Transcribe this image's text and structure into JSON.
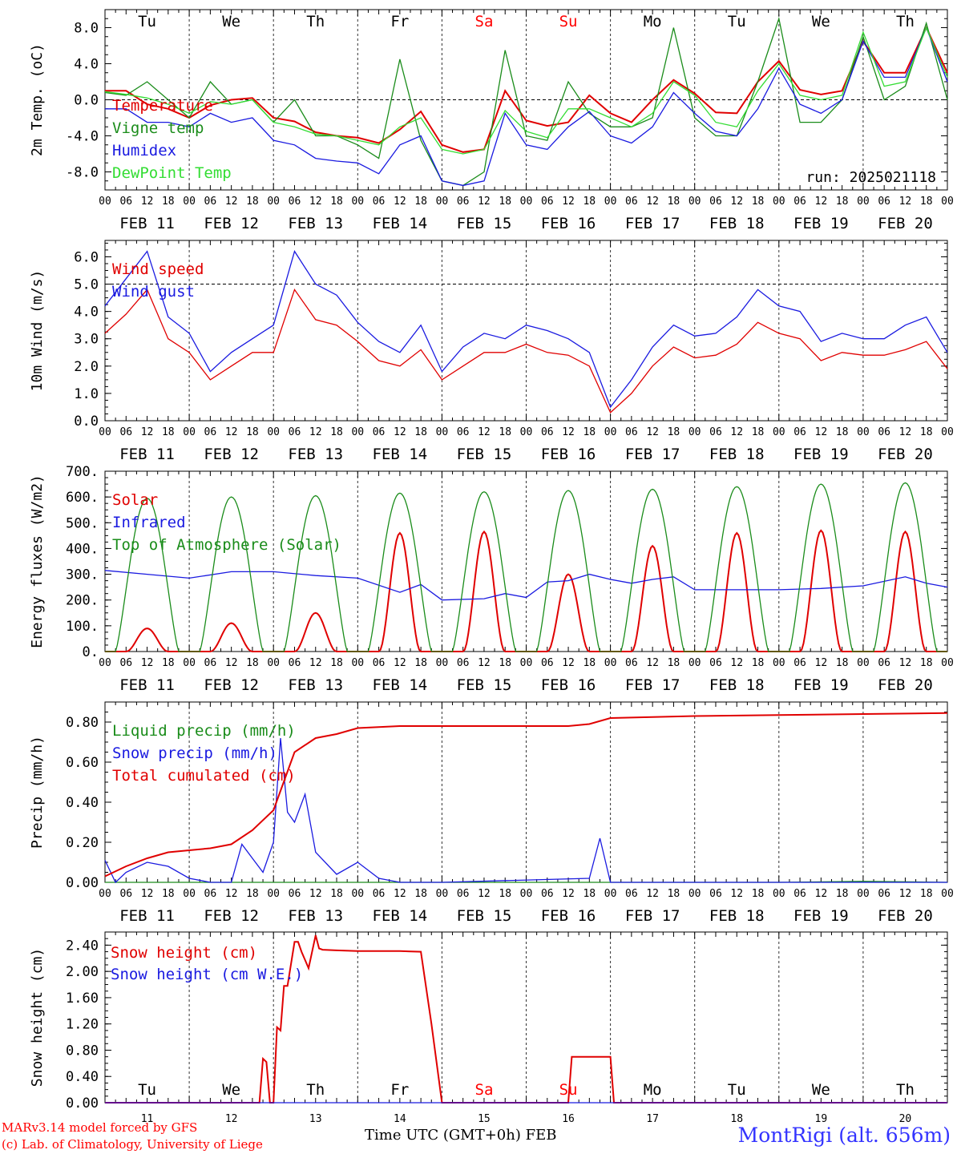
{
  "x_axis": {
    "hour_ticks": [
      "00",
      "06",
      "12",
      "18"
    ],
    "dates": [
      "FEB 11",
      "FEB 12",
      "FEB 13",
      "FEB 14",
      "FEB 15",
      "FEB 16",
      "FEB 17",
      "FEB 18",
      "FEB 19",
      "FEB 20"
    ],
    "end_tick": "00",
    "day_numbers": [
      "11",
      "12",
      "13",
      "14",
      "15",
      "16",
      "17",
      "18",
      "19",
      "20"
    ],
    "weekdays": [
      "Tu",
      "We",
      "Th",
      "Fr",
      "Sa",
      "Su",
      "Mo",
      "Tu",
      "We",
      "Th"
    ],
    "weekend_color": "#ff0000"
  },
  "footer": {
    "model": "MARv3.14 model forced by GFS",
    "copyright": "(c) Lab. of Climatology, University of Liege",
    "time_label": "Time UTC (GMT+0h) FEB",
    "station": "MontRigi (alt. 656m)"
  },
  "chart_data": [
    {
      "type": "line",
      "ylabel": "2m Temp. (oC)",
      "ylim": [
        -10,
        10
      ],
      "yticks": [
        "-8.0",
        "-4.0",
        "0.0",
        "4.0",
        "8.0"
      ],
      "annotation": "run: 2025021118",
      "x_unit": "hours since FEB 11 00 UTC",
      "series": [
        {
          "name": "Temperature",
          "color": "#e00000",
          "x": [
            0,
            6,
            12,
            18,
            24,
            30,
            36,
            42,
            48,
            54,
            60,
            66,
            72,
            78,
            84,
            90,
            96,
            102,
            108,
            114,
            120,
            126,
            132,
            138,
            144,
            150,
            156,
            162,
            168,
            174,
            180,
            186,
            192,
            198,
            204,
            210,
            216,
            222,
            228,
            234,
            240
          ],
          "values": [
            1.0,
            1.0,
            -0.5,
            -1.0,
            -2.0,
            -0.6,
            0.0,
            0.2,
            -2.0,
            -2.4,
            -3.6,
            -4.0,
            -4.2,
            -4.8,
            -3.3,
            -1.3,
            -5.0,
            -5.8,
            -5.5,
            1.0,
            -2.3,
            -2.9,
            -2.5,
            0.5,
            -1.5,
            -2.5,
            0.0,
            2.2,
            0.7,
            -1.4,
            -1.5,
            2.0,
            4.3,
            1.1,
            0.6,
            1.0,
            6.5,
            3.0,
            3.0,
            8.0,
            3.0
          ]
        },
        {
          "name": "Vigne temp",
          "color": "#1a8c1a",
          "x": [
            0,
            6,
            12,
            18,
            24,
            30,
            36,
            42,
            48,
            54,
            60,
            66,
            72,
            78,
            84,
            90,
            96,
            102,
            108,
            114,
            120,
            126,
            132,
            138,
            144,
            150,
            156,
            162,
            168,
            174,
            180,
            186,
            192,
            198,
            204,
            210,
            216,
            222,
            228,
            234,
            240
          ],
          "values": [
            0.8,
            0.5,
            2.0,
            0.0,
            -2.0,
            2.0,
            -0.5,
            0.0,
            -2.5,
            0.0,
            -4.0,
            -4.0,
            -5.0,
            -6.5,
            4.5,
            -4.5,
            -9.0,
            -9.5,
            -8.0,
            5.5,
            -4.0,
            -4.5,
            2.0,
            -1.5,
            -3.0,
            -3.0,
            -2.0,
            8.0,
            -2.0,
            -4.0,
            -4.0,
            2.0,
            9.0,
            -2.5,
            -2.5,
            0.0,
            7.0,
            0.0,
            1.5,
            8.5,
            0.0
          ]
        },
        {
          "name": "Humidex",
          "color": "#1a1ae0",
          "x": [
            0,
            6,
            12,
            18,
            24,
            30,
            36,
            42,
            48,
            54,
            60,
            66,
            72,
            78,
            84,
            90,
            96,
            102,
            108,
            114,
            120,
            126,
            132,
            138,
            144,
            150,
            156,
            162,
            168,
            174,
            180,
            186,
            192,
            198,
            204,
            210,
            216,
            222,
            228,
            234,
            240
          ],
          "values": [
            -1.0,
            -1.0,
            -2.5,
            -2.5,
            -3.0,
            -1.5,
            -2.5,
            -2.0,
            -4.5,
            -5.0,
            -6.5,
            -6.8,
            -7.0,
            -8.2,
            -5.0,
            -4.0,
            -9.0,
            -9.5,
            -9.0,
            -1.5,
            -5.0,
            -5.5,
            -3.0,
            -1.3,
            -4.0,
            -4.8,
            -3.0,
            0.8,
            -1.5,
            -3.5,
            -4.0,
            -1.0,
            3.5,
            -0.5,
            -1.5,
            0.0,
            6.5,
            2.5,
            2.5,
            8.0,
            2.0
          ]
        },
        {
          "name": "DewPoint Temp",
          "color": "#33dd33",
          "x": [
            0,
            6,
            12,
            18,
            24,
            30,
            36,
            42,
            48,
            54,
            60,
            66,
            72,
            78,
            84,
            90,
            96,
            102,
            108,
            114,
            120,
            126,
            132,
            138,
            144,
            150,
            156,
            162,
            168,
            174,
            180,
            186,
            192,
            198,
            204,
            210,
            216,
            222,
            228,
            234,
            240
          ],
          "values": [
            0.9,
            0.6,
            0.2,
            -0.5,
            -1.5,
            -0.2,
            -0.5,
            0.0,
            -2.5,
            -3.0,
            -3.8,
            -4.0,
            -4.5,
            -5.0,
            -3.0,
            -2.0,
            -5.5,
            -6.0,
            -5.5,
            -1.2,
            -3.5,
            -4.2,
            -1.0,
            -1.0,
            -2.0,
            -3.0,
            -1.5,
            2.0,
            0.5,
            -2.5,
            -3.0,
            1.0,
            4.0,
            0.5,
            0.0,
            0.5,
            7.5,
            1.5,
            2.0,
            8.0,
            2.5
          ]
        }
      ]
    },
    {
      "type": "line",
      "ylabel": "10m Wind (m/s)",
      "ylim": [
        0,
        6.6
      ],
      "yticks": [
        "0.0",
        "1.0",
        "2.0",
        "3.0",
        "4.0",
        "5.0",
        "6.0"
      ],
      "x_unit": "hours since FEB 11 00 UTC",
      "series": [
        {
          "name": "Wind speed",
          "color": "#e00000",
          "x": [
            0,
            6,
            12,
            18,
            24,
            30,
            36,
            42,
            48,
            54,
            60,
            66,
            72,
            78,
            84,
            90,
            96,
            102,
            108,
            114,
            120,
            126,
            132,
            138,
            144,
            150,
            156,
            162,
            168,
            174,
            180,
            186,
            192,
            198,
            204,
            210,
            216,
            222,
            228,
            234,
            240
          ],
          "values": [
            3.2,
            3.9,
            4.8,
            3.0,
            2.5,
            1.5,
            2.0,
            2.5,
            2.5,
            4.8,
            3.7,
            3.5,
            2.9,
            2.2,
            2.0,
            2.6,
            1.5,
            2.0,
            2.5,
            2.5,
            2.8,
            2.5,
            2.4,
            2.0,
            0.3,
            1.0,
            2.0,
            2.7,
            2.3,
            2.4,
            2.8,
            3.6,
            3.2,
            3.0,
            2.2,
            2.5,
            2.4,
            2.4,
            2.6,
            2.9,
            1.9
          ]
        },
        {
          "name": "Wind gust",
          "color": "#1a1ae0",
          "x": [
            0,
            6,
            12,
            18,
            24,
            30,
            36,
            42,
            48,
            54,
            60,
            66,
            72,
            78,
            84,
            90,
            96,
            102,
            108,
            114,
            120,
            126,
            132,
            138,
            144,
            150,
            156,
            162,
            168,
            174,
            180,
            186,
            192,
            198,
            204,
            210,
            216,
            222,
            228,
            234,
            240
          ],
          "values": [
            4.2,
            5.2,
            6.2,
            3.8,
            3.2,
            1.8,
            2.5,
            3.0,
            3.5,
            6.2,
            5.0,
            4.6,
            3.6,
            2.9,
            2.5,
            3.5,
            1.8,
            2.7,
            3.2,
            3.0,
            3.5,
            3.3,
            3.0,
            2.5,
            0.5,
            1.5,
            2.7,
            3.5,
            3.1,
            3.2,
            3.8,
            4.8,
            4.2,
            4.0,
            2.9,
            3.2,
            3.0,
            3.0,
            3.5,
            3.8,
            2.5
          ]
        }
      ]
    },
    {
      "type": "line",
      "ylabel": "Energy fluxes (W/m2)",
      "ylim": [
        0,
        700
      ],
      "yticks": [
        "0.",
        "100.",
        "200.",
        "300.",
        "400.",
        "500.",
        "600.",
        "700."
      ],
      "x_unit": "hours since FEB 11 00 UTC",
      "daily_peak_hour": 12,
      "series": [
        {
          "name": "Solar",
          "color": "#e00000",
          "daily_peaks": [
            90,
            110,
            150,
            460,
            465,
            300,
            410,
            460,
            470,
            465
          ]
        },
        {
          "name": "Infrared",
          "color": "#1a1ae0",
          "x": [
            0,
            12,
            24,
            36,
            48,
            60,
            72,
            84,
            90,
            96,
            108,
            114,
            120,
            126,
            132,
            138,
            144,
            150,
            156,
            162,
            168,
            180,
            192,
            204,
            216,
            228,
            234,
            240
          ],
          "values": [
            315,
            300,
            285,
            310,
            310,
            295,
            285,
            230,
            260,
            200,
            205,
            225,
            210,
            270,
            275,
            300,
            280,
            265,
            280,
            290,
            240,
            240,
            240,
            245,
            255,
            290,
            265,
            250
          ]
        },
        {
          "name": "Top of Atmosphere (Solar)",
          "color": "#1a8c1a",
          "daily_peaks": [
            595,
            600,
            605,
            615,
            620,
            625,
            630,
            640,
            650,
            655
          ]
        }
      ]
    },
    {
      "type": "line",
      "ylabel": "Precip (mm/h)",
      "ylim": [
        0,
        0.9
      ],
      "yticks": [
        "0.00",
        "0.20",
        "0.40",
        "0.60",
        "0.80"
      ],
      "x_unit": "hours since FEB 11 00 UTC",
      "series": [
        {
          "name": "Liquid precip (mm/h)",
          "color": "#1a8c1a",
          "x": [
            0,
            24,
            48,
            72,
            96,
            120,
            144,
            168,
            192,
            216,
            240
          ],
          "values": [
            0,
            0,
            0,
            0,
            0,
            0,
            0,
            0,
            0,
            0.005,
            0
          ]
        },
        {
          "name": "Snow precip (mm/h)",
          "color": "#1a1ae0",
          "x": [
            0,
            3,
            6,
            12,
            18,
            24,
            30,
            36,
            39,
            42,
            45,
            48,
            50,
            52,
            54,
            57,
            60,
            66,
            72,
            78,
            84,
            96,
            138,
            141,
            144,
            150,
            240
          ],
          "values": [
            0.11,
            0.0,
            0.05,
            0.1,
            0.08,
            0.02,
            0.0,
            0.0,
            0.19,
            0.12,
            0.05,
            0.2,
            0.72,
            0.35,
            0.3,
            0.44,
            0.15,
            0.04,
            0.1,
            0.02,
            0.0,
            0.0,
            0.02,
            0.22,
            0.0,
            0.0,
            0.0
          ]
        },
        {
          "name": "Total cumulated (cm)",
          "color": "#e00000",
          "x": [
            0,
            6,
            12,
            18,
            24,
            30,
            36,
            42,
            48,
            54,
            60,
            66,
            72,
            84,
            96,
            108,
            120,
            132,
            138,
            144,
            156,
            168,
            192,
            216,
            240
          ],
          "values": [
            0.03,
            0.08,
            0.12,
            0.15,
            0.16,
            0.17,
            0.19,
            0.26,
            0.36,
            0.65,
            0.72,
            0.74,
            0.77,
            0.78,
            0.78,
            0.78,
            0.78,
            0.78,
            0.79,
            0.82,
            0.825,
            0.83,
            0.835,
            0.84,
            0.845
          ]
        }
      ]
    },
    {
      "type": "line",
      "ylabel": "Snow height (cm)",
      "ylim": [
        0,
        2.6
      ],
      "yticks": [
        "0.00",
        "0.40",
        "0.80",
        "1.20",
        "1.60",
        "2.00",
        "2.40"
      ],
      "x_unit": "hours since FEB 11 00 UTC",
      "series": [
        {
          "name": "Snow height (cm)",
          "color": "#e00000",
          "x": [
            0,
            44,
            45,
            46,
            47,
            48,
            49,
            50,
            51,
            52,
            54,
            55,
            56,
            58,
            60,
            61,
            62,
            66,
            72,
            84,
            90,
            93,
            96,
            126,
            132,
            133,
            144,
            145,
            240
          ],
          "values": [
            0,
            0,
            0.67,
            0.62,
            0.0,
            0.0,
            1.15,
            1.1,
            1.78,
            1.78,
            2.45,
            2.45,
            2.3,
            2.05,
            2.55,
            2.35,
            2.33,
            2.32,
            2.31,
            2.31,
            2.3,
            1.2,
            0,
            0,
            0,
            0.7,
            0.7,
            0,
            0
          ]
        },
        {
          "name": "Snow height (cm W.E.)",
          "color": "#1a1ae0",
          "x": [
            0,
            240
          ],
          "values": [
            0,
            0
          ]
        }
      ]
    }
  ]
}
